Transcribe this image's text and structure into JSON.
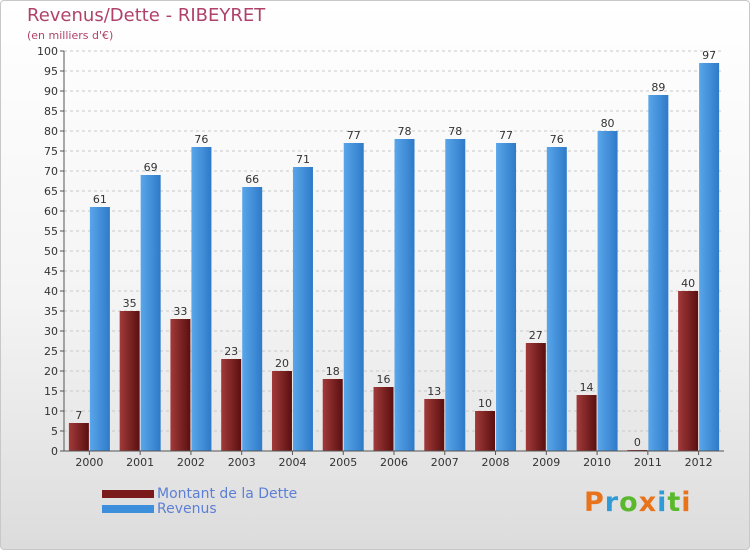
{
  "chart_data": {
    "type": "bar",
    "title": "Revenus/Dette - RIBEYRET",
    "subtitle": "(en milliers d'€)",
    "categories": [
      "2000",
      "2001",
      "2002",
      "2003",
      "2004",
      "2005",
      "2006",
      "2007",
      "2008",
      "2009",
      "2010",
      "2011",
      "2012"
    ],
    "series": [
      {
        "name": "Montant de la Dette",
        "color": "#7b1a1a",
        "values": [
          7,
          35,
          33,
          23,
          20,
          18,
          16,
          13,
          10,
          27,
          14,
          0,
          40
        ]
      },
      {
        "name": "Revenus",
        "color": "#3d8fdc",
        "values": [
          61,
          69,
          76,
          66,
          71,
          77,
          78,
          78,
          77,
          76,
          80,
          89,
          97
        ]
      }
    ],
    "ylim": [
      0,
      100
    ],
    "yticks": [
      0,
      5,
      10,
      15,
      20,
      25,
      30,
      35,
      40,
      45,
      50,
      55,
      60,
      65,
      70,
      75,
      80,
      85,
      90,
      95,
      100
    ],
    "grid": true,
    "legend": "bottom-left"
  },
  "brand": {
    "text": "Proxiti",
    "letter_colors": [
      "#e8731a",
      "#2f9bd6",
      "#5ab82c",
      "#e8731a",
      "#2f9bd6",
      "#5ab82c",
      "#e8731a"
    ]
  }
}
